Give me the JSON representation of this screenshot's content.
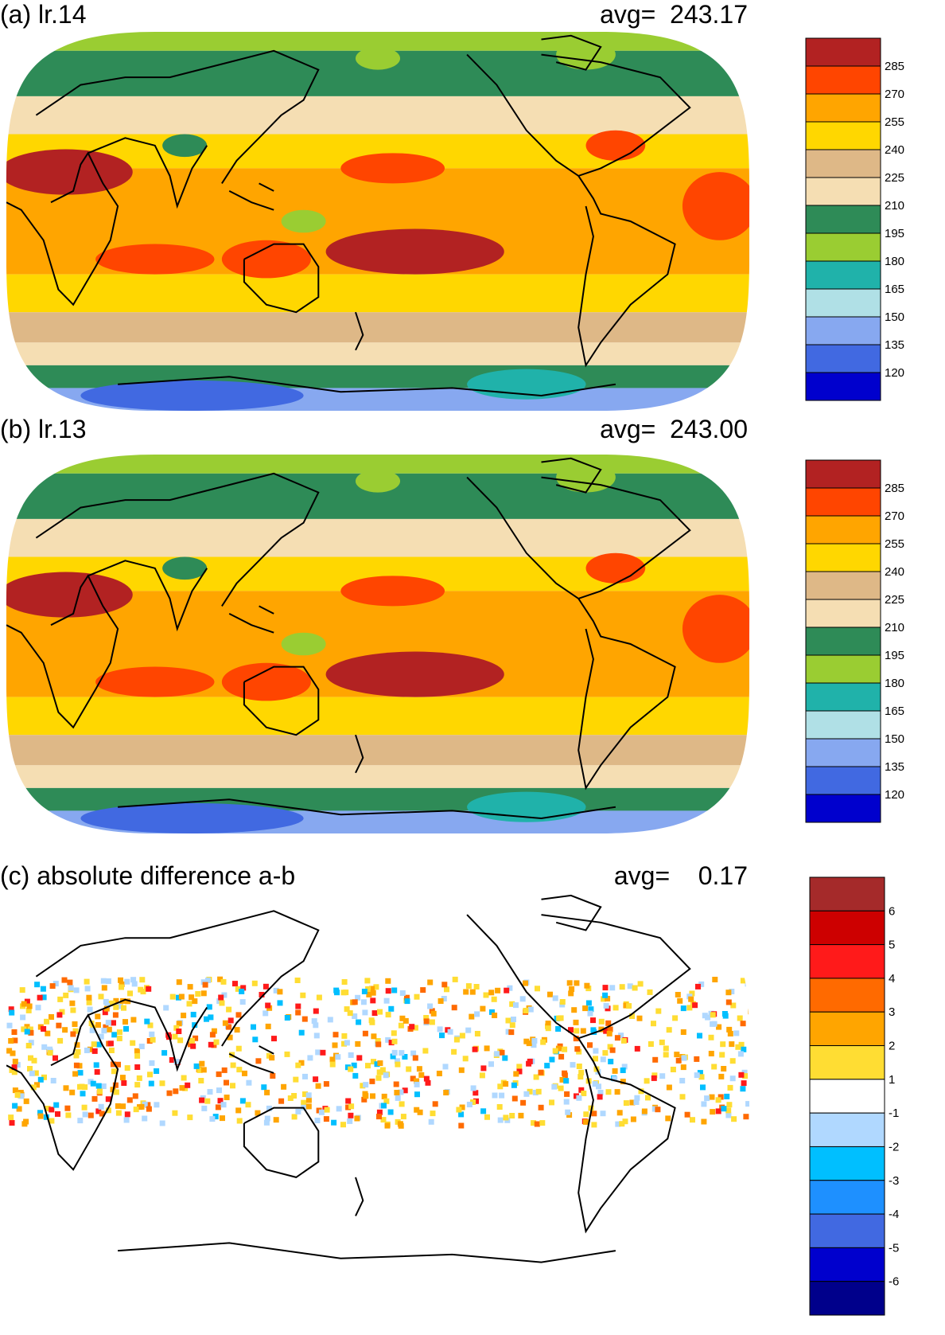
{
  "panels": [
    {
      "id": "a",
      "title": "(a) lr.14",
      "avg_label": "avg=",
      "avg_value": "243.17",
      "kind": "field",
      "colorbar": {
        "colors": [
          "#b22222",
          "#ff4500",
          "#ffa500",
          "#ffd700",
          "#deb887",
          "#f5deb3",
          "#2e8b57",
          "#9acd32",
          "#20b2aa",
          "#b0e0e6",
          "#87a8f0",
          "#4169e1",
          "#0000cd"
        ],
        "labels": [
          "285",
          "270",
          "255",
          "240",
          "225",
          "210",
          "195",
          "180",
          "165",
          "150",
          "135",
          "120"
        ]
      }
    },
    {
      "id": "b",
      "title": "(b) lr.13",
      "avg_label": "avg=",
      "avg_value": "243.00",
      "kind": "field",
      "colorbar": {
        "colors": [
          "#b22222",
          "#ff4500",
          "#ffa500",
          "#ffd700",
          "#deb887",
          "#f5deb3",
          "#2e8b57",
          "#9acd32",
          "#20b2aa",
          "#b0e0e6",
          "#87a8f0",
          "#4169e1",
          "#0000cd"
        ],
        "labels": [
          "285",
          "270",
          "255",
          "240",
          "225",
          "210",
          "195",
          "180",
          "165",
          "150",
          "135",
          "120"
        ]
      }
    },
    {
      "id": "c",
      "title": "(c) absolute difference a-b",
      "avg_label": "avg=",
      "avg_value": "0.17",
      "kind": "diff",
      "colorbar": {
        "colors": [
          "#a52a2a",
          "#cd0000",
          "#ff1a1a",
          "#ff6a00",
          "#ffa500",
          "#ffdd33",
          "#ffffff",
          "#b0d8ff",
          "#00bfff",
          "#1e90ff",
          "#4169e1",
          "#0000cd",
          "#00008b"
        ],
        "labels": [
          "6",
          "5",
          "4",
          "3",
          "2",
          "1",
          "-1",
          "-2",
          "-3",
          "-4",
          "-5",
          "-6"
        ]
      }
    }
  ]
}
